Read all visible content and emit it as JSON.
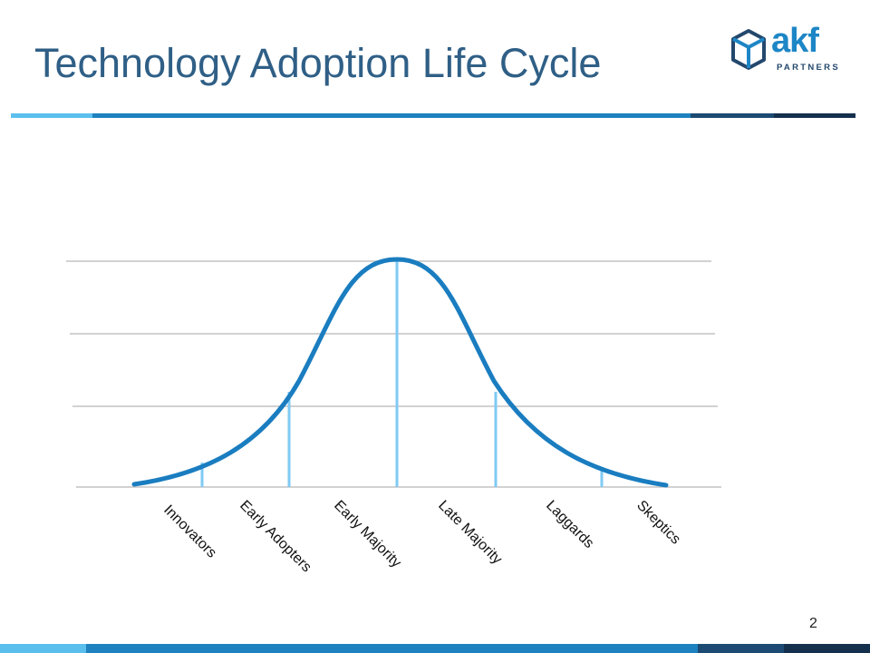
{
  "slide": {
    "title": "Technology Adoption Life Cycle",
    "page_number": "2"
  },
  "logo": {
    "brand": "akf",
    "subtitle": "PARTNERS",
    "icon": "cube-icon"
  },
  "diagram": {
    "type": "bell-curve",
    "segments": [
      {
        "label": "Innovators"
      },
      {
        "label": "Early Adopters"
      },
      {
        "label": "Early Majority"
      },
      {
        "label": "Late Majority"
      },
      {
        "label": "Laggards"
      },
      {
        "label": "Skeptics"
      }
    ]
  },
  "colors": {
    "title": "#2f5f86",
    "curve": "#1a7dc0",
    "dividers": "#7fcaf4",
    "gridlines": "#b8b8b8",
    "bar_light": "#5bbfee",
    "bar_mid": "#1d82bf",
    "bar_dark": "#1c4a72",
    "bar_navy": "#14304d"
  }
}
